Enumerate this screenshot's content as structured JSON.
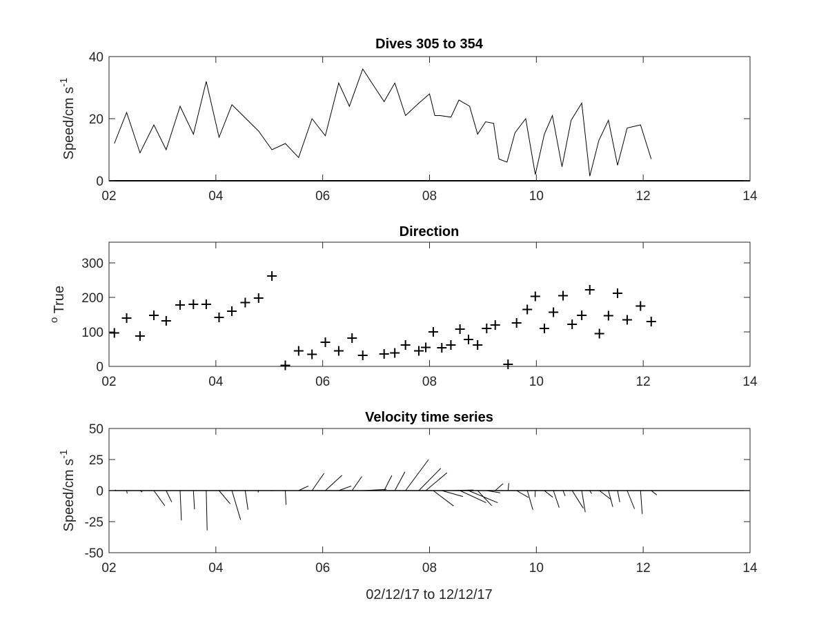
{
  "figure": {
    "xlabel": "02/12/17 to 12/12/17",
    "panels": [
      {
        "id": "speed",
        "title": "Dives 305 to 354",
        "ylabel": "Speed/cm s",
        "ylabel_sup": "-1"
      },
      {
        "id": "direction",
        "title": "Direction",
        "ylabel_sup": "o",
        "ylabel": " True"
      },
      {
        "id": "velocity",
        "title": "Velocity time series",
        "ylabel": "Speed/cm s",
        "ylabel_sup": "-1"
      }
    ]
  },
  "chart_data": [
    {
      "type": "line",
      "title": "Dives 305 to 354",
      "ylabel": "Speed/cm s-1",
      "xlim": [
        2,
        14
      ],
      "ylim": [
        0,
        40
      ],
      "xticks": [
        "02",
        "04",
        "06",
        "08",
        "10",
        "12",
        "14"
      ],
      "yticks": [
        "0",
        "20",
        "40"
      ],
      "line_color": "#000000",
      "x": [
        2.1,
        2.33,
        2.58,
        2.84,
        3.07,
        3.33,
        3.58,
        3.82,
        4.06,
        4.3,
        4.8,
        5.05,
        5.3,
        5.55,
        5.8,
        6.05,
        6.3,
        6.5,
        6.75,
        7.15,
        7.35,
        7.55,
        7.8,
        8.0,
        8.1,
        8.2,
        8.4,
        8.55,
        8.75,
        8.9,
        9.05,
        9.2,
        9.3,
        9.45,
        9.6,
        9.8,
        9.98,
        10.15,
        10.3,
        10.48,
        10.65,
        10.85,
        11.0,
        11.17,
        11.35,
        11.52,
        11.7,
        11.95,
        12.15
      ],
      "y": [
        12,
        22,
        9,
        18,
        10,
        24,
        15,
        32,
        14,
        24.5,
        16,
        10,
        12,
        7.5,
        20,
        14.5,
        31.5,
        24,
        36,
        25.5,
        31.5,
        21,
        25,
        28,
        21,
        21,
        20.5,
        26,
        24,
        15,
        19,
        18.5,
        7,
        6,
        15.5,
        20,
        2,
        15,
        21,
        4.5,
        19.5,
        25,
        1.5,
        13,
        19.5,
        5,
        17,
        18,
        7
      ]
    },
    {
      "type": "scatter",
      "title": "Direction",
      "ylabel": "o True",
      "marker": "+",
      "xlim": [
        2,
        14
      ],
      "ylim": [
        0,
        360
      ],
      "xticks": [
        "02",
        "04",
        "06",
        "08",
        "10",
        "12",
        "14"
      ],
      "yticks": [
        "0",
        "100",
        "200",
        "300"
      ],
      "x": [
        2.1,
        2.33,
        2.58,
        2.84,
        3.07,
        3.33,
        3.58,
        3.82,
        4.06,
        4.3,
        4.55,
        4.8,
        5.05,
        5.3,
        5.55,
        5.8,
        6.05,
        6.3,
        6.55,
        6.75,
        7.15,
        7.35,
        7.55,
        7.8,
        7.93,
        8.07,
        8.23,
        8.4,
        8.57,
        8.73,
        8.9,
        9.07,
        9.23,
        9.47,
        9.63,
        9.83,
        9.98,
        10.15,
        10.32,
        10.5,
        10.67,
        10.85,
        11.0,
        11.18,
        11.35,
        11.52,
        11.7,
        11.95,
        12.15
      ],
      "y": [
        97,
        140,
        88,
        148,
        132,
        178,
        180,
        180,
        142,
        160,
        185,
        198,
        262,
        3,
        45,
        35,
        70,
        45,
        82,
        32,
        36,
        39,
        62,
        45,
        55,
        100,
        54,
        62,
        108,
        78,
        62,
        110,
        120,
        6,
        126,
        165,
        203,
        110,
        157,
        205,
        122,
        148,
        222,
        95,
        147,
        212,
        135,
        175,
        130
      ]
    },
    {
      "type": "vector",
      "title": "Velocity time series",
      "ylabel": "Speed/cm s-1",
      "xlabel": "02/12/17 to 12/12/17",
      "xlim": [
        2,
        14
      ],
      "ylim": [
        -50,
        50
      ],
      "xticks": [
        "02",
        "04",
        "06",
        "08",
        "10",
        "12",
        "14"
      ],
      "yticks": [
        "-50",
        "-25",
        "0",
        "25",
        "50"
      ],
      "x": [
        2.1,
        2.33,
        2.58,
        2.84,
        3.07,
        3.33,
        3.58,
        3.82,
        4.06,
        4.3,
        4.55,
        4.8,
        5.05,
        5.3,
        5.55,
        5.8,
        6.05,
        6.3,
        6.55,
        6.75,
        7.15,
        7.35,
        7.55,
        7.8,
        7.93,
        8.07,
        8.23,
        8.4,
        8.57,
        8.73,
        8.9,
        9.07,
        9.23,
        9.47,
        9.63,
        9.83,
        9.98,
        10.15,
        10.32,
        10.5,
        10.67,
        10.85,
        11.0,
        11.18,
        11.35,
        11.52,
        11.7,
        11.95,
        12.15
      ],
      "u": [
        1.2,
        0.5,
        1.9,
        8.7,
        4.5,
        1.1,
        0.9,
        0.7,
        9.0,
        7.0,
        2.2,
        -0.5,
        -0.4,
        0.6,
        7.9,
        9.7,
        13.4,
        10.1,
        7.9,
        19.1,
        6.2,
        8.2,
        18.6,
        17.7,
        17.1,
        16.4,
        17.0,
        18.0,
        21.1,
        23.5,
        11.4,
        10.9,
        6.3,
        0.6,
        9.5,
        4.5,
        -0.2,
        6.8,
        4.6,
        1.7,
        9.0,
        2.8,
        1.5,
        9.1,
        3.5,
        1.8,
        5.9,
        1.4,
        4.5
      ],
      "v": [
        0.5,
        -2.3,
        -1.2,
        -12.1,
        -9.3,
        -24.0,
        -15.0,
        -32.0,
        -10.7,
        -23.5,
        -15.4,
        -1.5,
        -0.4,
        -11.4,
        3.7,
        13.9,
        12.4,
        3.7,
        11.4,
        1.0,
        12.2,
        15.1,
        25.0,
        18.0,
        14.4,
        -12.4,
        -4.8,
        0.5,
        -9.8,
        -9.8,
        -12.1,
        -1.8,
        5.6,
        6.0,
        -5.5,
        -15.5,
        -5.2,
        -5.4,
        -13.7,
        -4.4,
        -14.3,
        -17.4,
        -2.5,
        -7.0,
        -13.1,
        -9.2,
        -14.7,
        -18.8,
        -3.5
      ]
    }
  ]
}
